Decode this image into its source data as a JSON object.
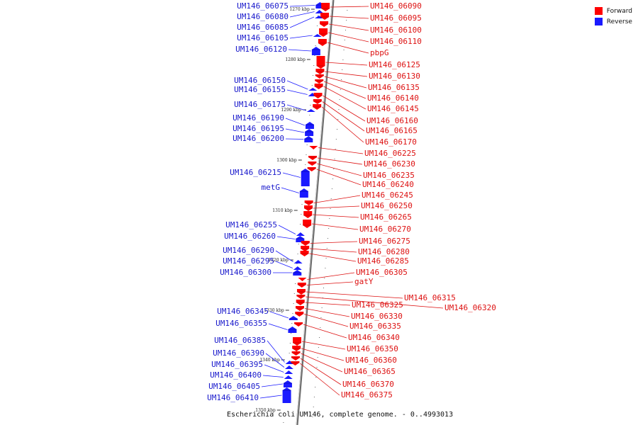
{
  "legend": [
    {
      "label": "Forward",
      "color": "#ff0000"
    },
    {
      "label": "Reverse",
      "color": "#1a1aff"
    }
  ],
  "caption": "Escherichia coli UM146, complete genome. - 0..4993013",
  "colors": {
    "forward": "#ff0000",
    "reverse": "#1a1aff",
    "backbone": "#8a8a8a"
  },
  "ticks": [
    "1270 kbp",
    "1280 kbp",
    "1290 kbp",
    "1300 kbp",
    "1310 kbp",
    "1320 kbp",
    "1330 kbp",
    "1340 kbp",
    "1350 kbp"
  ],
  "reverse_genes": [
    {
      "label": "UM146_06075"
    },
    {
      "label": "UM146_06080"
    },
    {
      "label": "UM146_06085"
    },
    {
      "label": "UM146_06105"
    },
    {
      "label": "UM146_06120"
    },
    {
      "label": "UM146_06150"
    },
    {
      "label": "UM146_06155"
    },
    {
      "label": "UM146_06175"
    },
    {
      "label": "UM146_06190"
    },
    {
      "label": "UM146_06195"
    },
    {
      "label": "UM146_06200"
    },
    {
      "label": "UM146_06215"
    },
    {
      "label": "metG"
    },
    {
      "label": "UM146_06255"
    },
    {
      "label": "UM146_06260"
    },
    {
      "label": "UM146_06290"
    },
    {
      "label": "UM146_06295"
    },
    {
      "label": "UM146_06300"
    },
    {
      "label": "UM146_06345"
    },
    {
      "label": "UM146_06355"
    },
    {
      "label": "UM146_06385"
    },
    {
      "label": "UM146_06390"
    },
    {
      "label": "UM146_06395"
    },
    {
      "label": "UM146_06400"
    },
    {
      "label": "UM146_06405"
    },
    {
      "label": "UM146_06410"
    }
  ],
  "forward_genes": [
    {
      "label": "UM146_06090"
    },
    {
      "label": "UM146_06095"
    },
    {
      "label": "UM146_06100"
    },
    {
      "label": "UM146_06110"
    },
    {
      "label": "pbpG"
    },
    {
      "label": "UM146_06125"
    },
    {
      "label": "UM146_06130"
    },
    {
      "label": "UM146_06135"
    },
    {
      "label": "UM146_06140"
    },
    {
      "label": "UM146_06145"
    },
    {
      "label": "UM146_06160"
    },
    {
      "label": "UM146_06165"
    },
    {
      "label": "UM146_06170"
    },
    {
      "label": "UM146_06225"
    },
    {
      "label": "UM146_06230"
    },
    {
      "label": "UM146_06235"
    },
    {
      "label": "UM146_06240"
    },
    {
      "label": "UM146_06245"
    },
    {
      "label": "UM146_06250"
    },
    {
      "label": "UM146_06265"
    },
    {
      "label": "UM146_06270"
    },
    {
      "label": "UM146_06275"
    },
    {
      "label": "UM146_06280"
    },
    {
      "label": "UM146_06285"
    },
    {
      "label": "UM146_06305"
    },
    {
      "label": "gatY"
    },
    {
      "label": "UM146_06315"
    },
    {
      "label": "UM146_06320"
    },
    {
      "label": "UM146_06325"
    },
    {
      "label": "UM146_06330"
    },
    {
      "label": "UM146_06335"
    },
    {
      "label": "UM146_06340"
    },
    {
      "label": "UM146_06350"
    },
    {
      "label": "UM146_06360"
    },
    {
      "label": "UM146_06365"
    },
    {
      "label": "UM146_06370"
    },
    {
      "label": "UM146_06375"
    }
  ]
}
